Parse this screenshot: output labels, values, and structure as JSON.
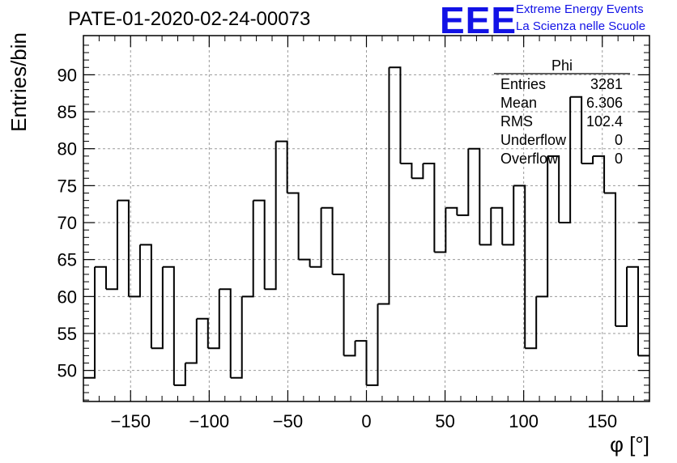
{
  "header": {
    "title": "PATE-01-2020-02-24-00073",
    "logo_text": "EEE",
    "logo_line1": "Extreme Energy Events",
    "logo_line2": "La Scienza nelle Scuole",
    "logo_color": "#1212e6"
  },
  "chart_data": {
    "type": "bar",
    "style": "step-histogram",
    "xlabel": "φ [°]",
    "ylabel": "Entries/bin",
    "xlim": [
      -180,
      180
    ],
    "ylim": [
      45.8,
      95.3
    ],
    "bin_width": 7.2,
    "xticks": [
      -150,
      -100,
      -50,
      0,
      50,
      100,
      150
    ],
    "yticks": [
      50,
      55,
      60,
      65,
      70,
      75,
      80,
      85,
      90
    ],
    "grid": true,
    "values": [
      49,
      64,
      61,
      73,
      60,
      67,
      53,
      64,
      48,
      51,
      57,
      53,
      61,
      49,
      60,
      73,
      61,
      81,
      74,
      65,
      64,
      72,
      63,
      52,
      54,
      48,
      59,
      91,
      78,
      76,
      78,
      66,
      72,
      71,
      80,
      67,
      72,
      67,
      75,
      53,
      60,
      79,
      70,
      87,
      78,
      79,
      74,
      56,
      64,
      52
    ],
    "stats": {
      "title": "Phi",
      "rows": [
        {
          "label": "Entries",
          "value": "3281"
        },
        {
          "label": "Mean",
          "value": "6.306"
        },
        {
          "label": "RMS",
          "value": "102.4"
        },
        {
          "label": "Underflow",
          "value": "0"
        },
        {
          "label": "Overflow",
          "value": "0"
        }
      ]
    }
  }
}
